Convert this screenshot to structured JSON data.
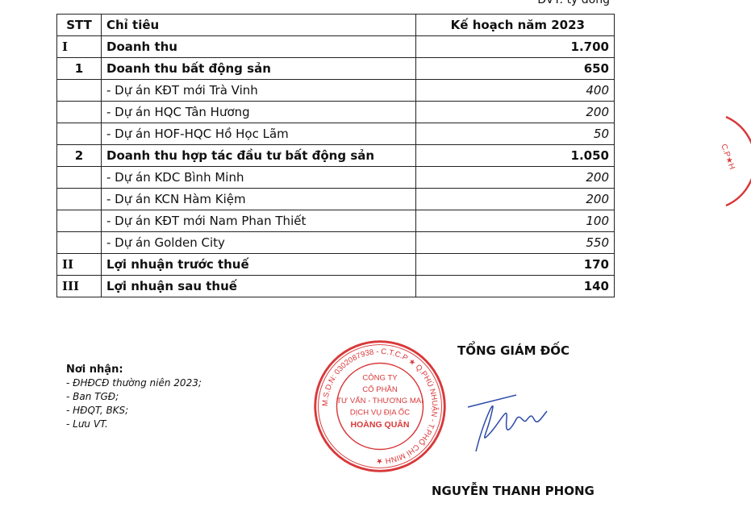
{
  "unit_label": "ĐVT: tỷ đồng",
  "table": {
    "headers": [
      "STT",
      "Chỉ tiêu",
      "Kế hoạch năm 2023"
    ],
    "rows": [
      {
        "stt": "I",
        "label": "Doanh thu",
        "value": "1.700",
        "style": "roman"
      },
      {
        "stt": "1",
        "label": "Doanh thu bất động sản",
        "value": "650",
        "style": "bold"
      },
      {
        "stt": "",
        "label": "- Dự án KĐT mới Trà Vinh",
        "value": "400",
        "style": "item"
      },
      {
        "stt": "",
        "label": "- Dự án HQC Tân Hương",
        "value": "200",
        "style": "item"
      },
      {
        "stt": "",
        "label": "- Dự án  HOF-HQC Hồ Học Lãm",
        "value": "50",
        "style": "item"
      },
      {
        "stt": "2",
        "label": "Doanh thu hợp tác đầu tư bất động sản",
        "value": "1.050",
        "style": "bold"
      },
      {
        "stt": "",
        "label": "- Dự án KDC Bình Minh",
        "value": "200",
        "style": "item"
      },
      {
        "stt": "",
        "label": "- Dự án KCN Hàm Kiệm",
        "value": "200",
        "style": "item"
      },
      {
        "stt": "",
        "label": "- Dự án KĐT mới Nam Phan Thiết",
        "value": "100",
        "style": "item"
      },
      {
        "stt": "",
        "label": "- Dự án Golden City",
        "value": "550",
        "style": "item"
      },
      {
        "stt": "II",
        "label": "Lợi nhuận trước thuế",
        "value": "170",
        "style": "roman"
      },
      {
        "stt": "III",
        "label": "Lợi nhuận sau thuế",
        "value": "140",
        "style": "roman"
      }
    ]
  },
  "recipients": {
    "heading": "Nơi nhận:",
    "items": [
      "- ĐHĐCĐ thường niên 2023;",
      "- Ban TGĐ;",
      "- HĐQT, BKS;",
      "- Lưu VT."
    ]
  },
  "signature": {
    "title": "TỔNG GIÁM ĐỐC",
    "name": "NGUYỄN THANH PHONG"
  },
  "stamp": {
    "ring_text": "M.S.D.N: 0302087938 - C.T.C.P ★ Q.PHÚ NHUẬN - T.PHỐ CHÍ MINH ★",
    "lines": [
      "CÔNG TY",
      "CỔ PHẦN",
      "TƯ VẤN - THƯƠNG MẠI",
      "DỊCH VỤ ĐỊA ỐC",
      "HOÀNG QUÂN"
    ],
    "color": "#d9383a"
  },
  "ink_color": "#2b4aa8"
}
